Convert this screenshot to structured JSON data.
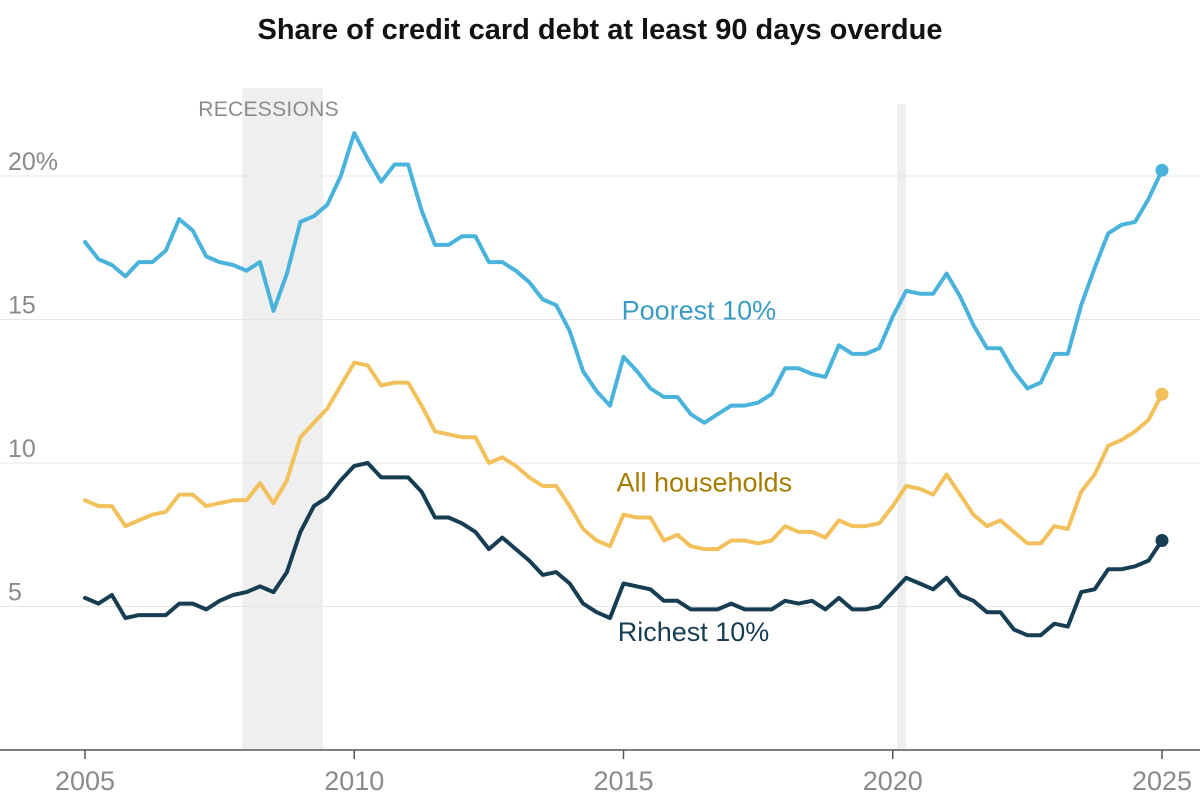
{
  "chart_data": {
    "type": "line",
    "title": "Share of credit card debt at least 90 days overdue",
    "xlabel": "",
    "ylabel": "",
    "xlim": [
      2005,
      2025
    ],
    "ylim": [
      0,
      22
    ],
    "y_ticks": [
      {
        "value": 5,
        "label": "5"
      },
      {
        "value": 10,
        "label": "10"
      },
      {
        "value": 15,
        "label": "15"
      },
      {
        "value": 20,
        "label": "20%"
      }
    ],
    "x_ticks": [
      {
        "value": 2005,
        "label": "2005"
      },
      {
        "value": 2010,
        "label": "2010"
      },
      {
        "value": 2015,
        "label": "2015"
      },
      {
        "value": 2020,
        "label": "2020"
      },
      {
        "value": 2025,
        "label": "2025"
      }
    ],
    "grid": true,
    "legend": "none (series labeled directly on chart)",
    "recessions": {
      "label": "RECESSIONS",
      "periods": [
        [
          2007.92,
          2009.42
        ],
        [
          2020.08,
          2020.25
        ]
      ]
    },
    "series": [
      {
        "name": "Poorest 10%",
        "color": "#4ab3dc",
        "label_color": "#3a9cc4",
        "x": [
          2005.0,
          2005.25,
          2005.5,
          2005.75,
          2006.0,
          2006.25,
          2006.5,
          2006.75,
          2007.0,
          2007.25,
          2007.5,
          2007.75,
          2008.0,
          2008.25,
          2008.5,
          2008.75,
          2009.0,
          2009.25,
          2009.5,
          2009.75,
          2010.0,
          2010.25,
          2010.5,
          2010.75,
          2011.0,
          2011.25,
          2011.5,
          2011.75,
          2012.0,
          2012.25,
          2012.5,
          2012.75,
          2013.0,
          2013.25,
          2013.5,
          2013.75,
          2014.0,
          2014.25,
          2014.5,
          2014.75,
          2015.0,
          2015.25,
          2015.5,
          2015.75,
          2016.0,
          2016.25,
          2016.5,
          2016.75,
          2017.0,
          2017.25,
          2017.5,
          2017.75,
          2018.0,
          2018.25,
          2018.5,
          2018.75,
          2019.0,
          2019.25,
          2019.5,
          2019.75,
          2020.0,
          2020.25,
          2020.5,
          2020.75,
          2021.0,
          2021.25,
          2021.5,
          2021.75,
          2022.0,
          2022.25,
          2022.5,
          2022.75,
          2023.0,
          2023.25,
          2023.5,
          2023.75,
          2024.0,
          2024.25,
          2024.5,
          2024.75,
          2025.0
        ],
        "values": [
          17.7,
          17.1,
          16.9,
          16.5,
          17.0,
          17.0,
          17.4,
          18.5,
          18.1,
          17.2,
          17.0,
          16.9,
          16.7,
          17.0,
          15.3,
          16.6,
          18.4,
          18.6,
          19.0,
          20.0,
          21.5,
          20.6,
          19.8,
          20.4,
          20.4,
          18.8,
          17.6,
          17.6,
          17.9,
          17.9,
          17.0,
          17.0,
          16.7,
          16.3,
          15.7,
          15.5,
          14.6,
          13.2,
          12.5,
          12.0,
          13.7,
          13.2,
          12.6,
          12.3,
          12.3,
          11.7,
          11.4,
          11.7,
          12.0,
          12.0,
          12.1,
          12.4,
          13.3,
          13.3,
          13.1,
          13.0,
          14.1,
          13.8,
          13.8,
          14.0,
          15.1,
          16.0,
          15.9,
          15.9,
          16.6,
          15.8,
          14.8,
          14.0,
          14.0,
          13.2,
          12.6,
          12.8,
          13.8,
          13.8,
          15.5,
          16.8,
          18.0,
          18.3,
          18.4,
          19.2,
          20.2
        ]
      },
      {
        "name": "All households",
        "color": "#f2c15b",
        "label_color": "#a67c00",
        "x": [
          2005.0,
          2005.25,
          2005.5,
          2005.75,
          2006.0,
          2006.25,
          2006.5,
          2006.75,
          2007.0,
          2007.25,
          2007.5,
          2007.75,
          2008.0,
          2008.25,
          2008.5,
          2008.75,
          2009.0,
          2009.25,
          2009.5,
          2009.75,
          2010.0,
          2010.25,
          2010.5,
          2010.75,
          2011.0,
          2011.25,
          2011.5,
          2011.75,
          2012.0,
          2012.25,
          2012.5,
          2012.75,
          2013.0,
          2013.25,
          2013.5,
          2013.75,
          2014.0,
          2014.25,
          2014.5,
          2014.75,
          2015.0,
          2015.25,
          2015.5,
          2015.75,
          2016.0,
          2016.25,
          2016.5,
          2016.75,
          2017.0,
          2017.25,
          2017.5,
          2017.75,
          2018.0,
          2018.25,
          2018.5,
          2018.75,
          2019.0,
          2019.25,
          2019.5,
          2019.75,
          2020.0,
          2020.25,
          2020.5,
          2020.75,
          2021.0,
          2021.25,
          2021.5,
          2021.75,
          2022.0,
          2022.25,
          2022.5,
          2022.75,
          2023.0,
          2023.25,
          2023.5,
          2023.75,
          2024.0,
          2024.25,
          2024.5,
          2024.75,
          2025.0
        ],
        "values": [
          8.7,
          8.5,
          8.5,
          7.8,
          8.0,
          8.2,
          8.3,
          8.9,
          8.9,
          8.5,
          8.6,
          8.7,
          8.7,
          9.3,
          8.6,
          9.4,
          10.9,
          11.4,
          11.9,
          12.7,
          13.5,
          13.4,
          12.7,
          12.8,
          12.8,
          12.0,
          11.1,
          11.0,
          10.9,
          10.9,
          10.0,
          10.2,
          9.9,
          9.5,
          9.2,
          9.2,
          8.5,
          7.7,
          7.3,
          7.1,
          8.2,
          8.1,
          8.1,
          7.3,
          7.5,
          7.1,
          7.0,
          7.0,
          7.3,
          7.3,
          7.2,
          7.3,
          7.8,
          7.6,
          7.6,
          7.4,
          8.0,
          7.8,
          7.8,
          7.9,
          8.5,
          9.2,
          9.1,
          8.9,
          9.6,
          8.9,
          8.2,
          7.8,
          8.0,
          7.6,
          7.2,
          7.2,
          7.8,
          7.7,
          9.0,
          9.6,
          10.6,
          10.8,
          11.1,
          11.5,
          12.4
        ]
      },
      {
        "name": "Richest 10%",
        "color": "#173d53",
        "label_color": "#173d53",
        "x": [
          2005.0,
          2005.25,
          2005.5,
          2005.75,
          2006.0,
          2006.25,
          2006.5,
          2006.75,
          2007.0,
          2007.25,
          2007.5,
          2007.75,
          2008.0,
          2008.25,
          2008.5,
          2008.75,
          2009.0,
          2009.25,
          2009.5,
          2009.75,
          2010.0,
          2010.25,
          2010.5,
          2010.75,
          2011.0,
          2011.25,
          2011.5,
          2011.75,
          2012.0,
          2012.25,
          2012.5,
          2012.75,
          2013.0,
          2013.25,
          2013.5,
          2013.75,
          2014.0,
          2014.25,
          2014.5,
          2014.75,
          2015.0,
          2015.25,
          2015.5,
          2015.75,
          2016.0,
          2016.25,
          2016.5,
          2016.75,
          2017.0,
          2017.25,
          2017.5,
          2017.75,
          2018.0,
          2018.25,
          2018.5,
          2018.75,
          2019.0,
          2019.25,
          2019.5,
          2019.75,
          2020.0,
          2020.25,
          2020.5,
          2020.75,
          2021.0,
          2021.25,
          2021.5,
          2021.75,
          2022.0,
          2022.25,
          2022.5,
          2022.75,
          2023.0,
          2023.25,
          2023.5,
          2023.75,
          2024.0,
          2024.25,
          2024.5,
          2024.75,
          2025.0
        ],
        "values": [
          5.3,
          5.1,
          5.4,
          4.6,
          4.7,
          4.7,
          4.7,
          5.1,
          5.1,
          4.9,
          5.2,
          5.4,
          5.5,
          5.7,
          5.5,
          6.2,
          7.6,
          8.5,
          8.8,
          9.4,
          9.9,
          10.0,
          9.5,
          9.5,
          9.5,
          9.0,
          8.1,
          8.1,
          7.9,
          7.6,
          7.0,
          7.4,
          7.0,
          6.6,
          6.1,
          6.2,
          5.8,
          5.1,
          4.8,
          4.6,
          5.8,
          5.7,
          5.6,
          5.2,
          5.2,
          4.9,
          4.9,
          4.9,
          5.1,
          4.9,
          4.9,
          4.9,
          5.2,
          5.1,
          5.2,
          4.9,
          5.3,
          4.9,
          4.9,
          5.0,
          5.5,
          6.0,
          5.8,
          5.6,
          6.0,
          5.4,
          5.2,
          4.8,
          4.8,
          4.2,
          4.0,
          4.0,
          4.4,
          4.3,
          5.5,
          5.6,
          6.3,
          6.3,
          6.4,
          6.6,
          7.3
        ]
      }
    ],
    "annotations": [
      {
        "text": "Poorest 10%",
        "series": 0
      },
      {
        "text": "All households",
        "series": 1
      },
      {
        "text": "Richest 10%",
        "series": 2
      }
    ]
  }
}
